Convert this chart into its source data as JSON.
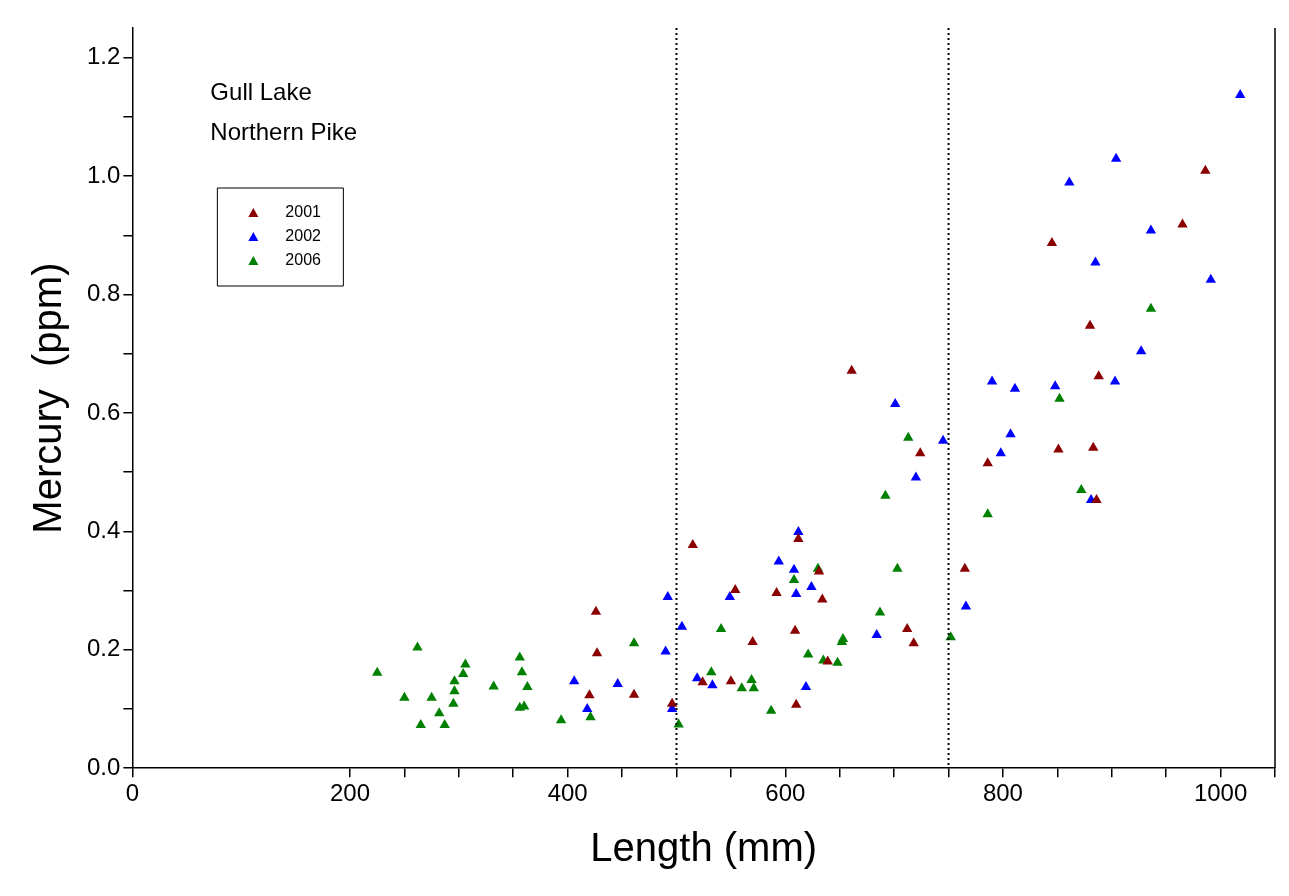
{
  "chart_data": {
    "type": "scatter",
    "xlabel": "Length (mm)",
    "ylabel": "Mercury  (ppm)",
    "annotations": [
      "Gull Lake",
      "Northern Pike"
    ],
    "xlim": [
      0,
      1050
    ],
    "xticks": [
      0,
      200,
      {
        "value": 250,
        "label": null
      },
      {
        "value": 300,
        "label": null
      },
      {
        "value": 350,
        "label": null
      },
      400,
      {
        "value": 450,
        "label": null
      },
      {
        "value": 500,
        "label": null
      },
      {
        "value": 550,
        "label": null
      },
      600,
      {
        "value": 650,
        "label": null
      },
      {
        "value": 700,
        "label": null
      },
      {
        "value": 750,
        "label": null
      },
      800,
      {
        "value": 850,
        "label": null
      },
      {
        "value": 900,
        "label": null
      },
      {
        "value": 950,
        "label": null
      },
      1000,
      {
        "value": 1050,
        "label": null
      }
    ],
    "ylim": [
      0,
      1.25
    ],
    "yticks": [
      {
        "value": 0,
        "label": "0.0"
      },
      {
        "value": 0.1,
        "label": null
      },
      {
        "value": 0.2,
        "label": "0.2"
      },
      {
        "value": 0.3,
        "label": null
      },
      {
        "value": 0.4,
        "label": "0.4"
      },
      {
        "value": 0.5,
        "label": null
      },
      {
        "value": 0.6,
        "label": "0.6"
      },
      {
        "value": 0.7,
        "label": null
      },
      {
        "value": 0.8,
        "label": "0.8"
      },
      {
        "value": 0.9,
        "label": null
      },
      {
        "value": 1.0,
        "label": "1.0"
      },
      {
        "value": 1.1,
        "label": null
      },
      {
        "value": 1.2,
        "label": "1.2"
      }
    ],
    "grid": false,
    "legend": "top left",
    "marker": "triangle",
    "ref_lines": [
      {
        "axis": "x",
        "value": 500,
        "line_style": "dotted",
        "color": "#000000"
      },
      {
        "axis": "x",
        "value": 750,
        "line_style": "dotted",
        "color": "#000000"
      }
    ],
    "series": [
      {
        "name": "2001",
        "color": "#8b0000",
        "x": [
          426,
          427,
          420,
          461,
          496,
          554,
          592,
          634,
          570,
          609,
          524,
          550,
          639,
          610,
          712,
          718,
          515,
          661,
          724,
          612,
          631,
          765,
          786,
          845,
          880,
          888,
          851,
          883,
          886,
          965,
          986
        ],
        "values": [
          0.264,
          0.194,
          0.123,
          0.124,
          0.109,
          0.301,
          0.296,
          0.285,
          0.213,
          0.232,
          0.145,
          0.147,
          0.18,
          0.107,
          0.235,
          0.211,
          0.377,
          0.671,
          0.532,
          0.387,
          0.332,
          0.337,
          0.515,
          0.887,
          0.747,
          0.662,
          0.538,
          0.541,
          0.453,
          0.918,
          1.009
        ]
      },
      {
        "name": "2002",
        "color": "#0000ff",
        "x": [
          406,
          418,
          446,
          490,
          492,
          496,
          505,
          519,
          549,
          610,
          624,
          533,
          619,
          684,
          766,
          612,
          594,
          608,
          701,
          720,
          745,
          790,
          811,
          848,
          807,
          798,
          861,
          904,
          885,
          936,
          991,
          927,
          903,
          881,
          1018
        ],
        "values": [
          0.147,
          0.1,
          0.142,
          0.197,
          0.289,
          0.1,
          0.239,
          0.152,
          0.289,
          0.294,
          0.306,
          0.14,
          0.137,
          0.225,
          0.273,
          0.399,
          0.349,
          0.335,
          0.615,
          0.491,
          0.553,
          0.653,
          0.641,
          0.645,
          0.564,
          0.532,
          0.989,
          1.029,
          0.854,
          0.908,
          0.825,
          0.704,
          0.653,
          0.453,
          1.137
        ]
      },
      {
        "name": "2006",
        "color": "#008000",
        "x": [
          225,
          250,
          262,
          265,
          275,
          282,
          287,
          295,
          296,
          296,
          304,
          306,
          332,
          356,
          358,
          363,
          356,
          360,
          394,
          421,
          461,
          502,
          608,
          541,
          532,
          560,
          569,
          571,
          587,
          621,
          635,
          648,
          652,
          653,
          687,
          752,
          630,
          692,
          713,
          703,
          852,
          936,
          872,
          786
        ],
        "values": [
          0.161,
          0.119,
          0.204,
          0.073,
          0.119,
          0.093,
          0.073,
          0.109,
          0.13,
          0.147,
          0.159,
          0.175,
          0.138,
          0.187,
          0.162,
          0.137,
          0.102,
          0.104,
          0.081,
          0.086,
          0.211,
          0.074,
          0.318,
          0.235,
          0.162,
          0.135,
          0.149,
          0.135,
          0.097,
          0.192,
          0.182,
          0.178,
          0.213,
          0.218,
          0.263,
          0.221,
          0.337,
          0.46,
          0.558,
          0.337,
          0.624,
          0.776,
          0.47,
          0.429
        ]
      }
    ]
  }
}
